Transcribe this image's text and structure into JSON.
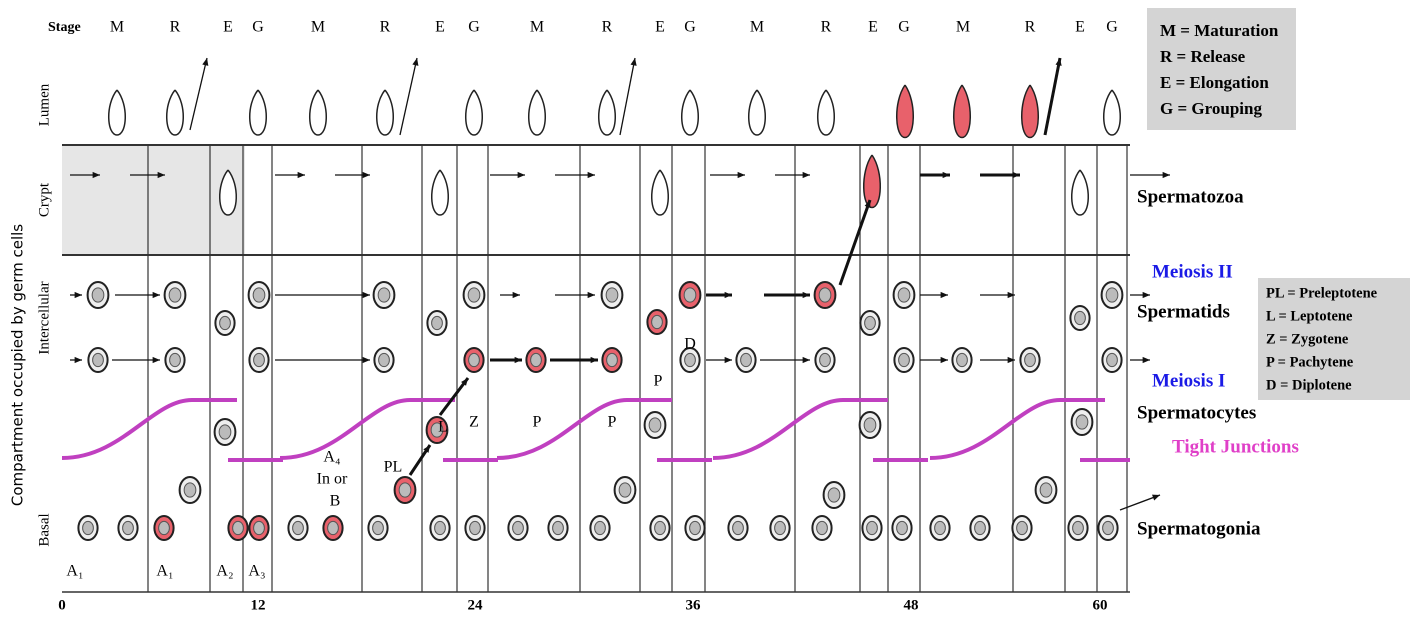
{
  "stage_header": {
    "title": "Stage",
    "stages": [
      "M",
      "R",
      "E",
      "G",
      "M",
      "R",
      "E",
      "G",
      "M",
      "R",
      "E",
      "G",
      "M",
      "R",
      "E",
      "G",
      "M",
      "R",
      "E",
      "G"
    ]
  },
  "axis": {
    "title": "Compartment occupied by germ cells",
    "compartments": [
      "Lumen",
      "Crypt",
      "Intercellular",
      "Basal"
    ],
    "ticks": [
      "0",
      "12",
      "24",
      "36",
      "48",
      "60"
    ]
  },
  "legend_stages": [
    "M = Maturation",
    "R = Release",
    "E = Elongation",
    "G = Grouping"
  ],
  "legend_phases": [
    "PL = Preleptotene",
    "L = Leptotene",
    "Z = Zygotene",
    "P = Pachytene",
    "D = Diplotene"
  ],
  "row_labels": {
    "spermatozoa": "Spermatozoa",
    "meiosis_ii": "Meiosis II",
    "spermatids": "Spermatids",
    "meiosis_i": "Meiosis I",
    "spermatocytes": "Spermatocytes",
    "tight_junctions": "Tight Junctions",
    "spermatogonia": "Spermatogonia"
  },
  "cell_labels": [
    "A₁",
    "A₁",
    "A₂",
    "A₃",
    "A₄",
    "In or",
    "B",
    "PL",
    "L",
    "Z",
    "P",
    "P",
    "P",
    "D"
  ]
}
